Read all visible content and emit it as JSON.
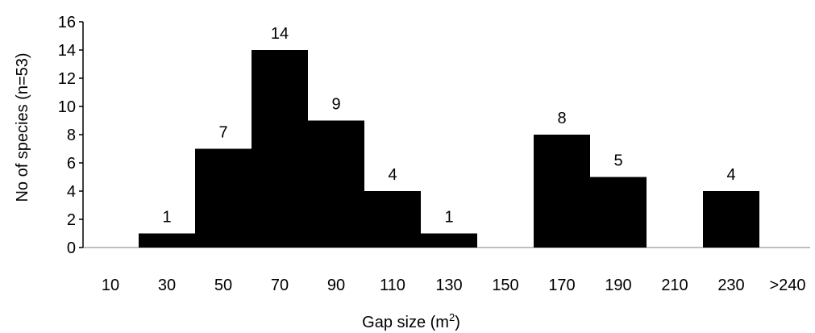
{
  "chart_data": {
    "type": "bar",
    "categories": [
      "10",
      "30",
      "50",
      "70",
      "90",
      "110",
      "130",
      "150",
      "170",
      "190",
      "210",
      "230",
      ">240"
    ],
    "values": [
      0,
      1,
      7,
      14,
      9,
      4,
      1,
      0,
      8,
      5,
      0,
      4,
      0
    ],
    "data_labels": [
      "",
      "1",
      "7",
      "14",
      "9",
      "4",
      "1",
      "",
      "8",
      "5",
      "",
      "4",
      ""
    ],
    "ylabel": "No of species (n=53)",
    "xlabel_main": "Gap size (m",
    "xlabel_sup": "2",
    "xlabel_close": ")",
    "ylim": [
      0,
      16
    ],
    "yticks": [
      "0",
      "2",
      "4",
      "6",
      "8",
      "10",
      "12",
      "14",
      "16"
    ],
    "bar_color": "#000000",
    "grid": false,
    "legend": "none"
  }
}
